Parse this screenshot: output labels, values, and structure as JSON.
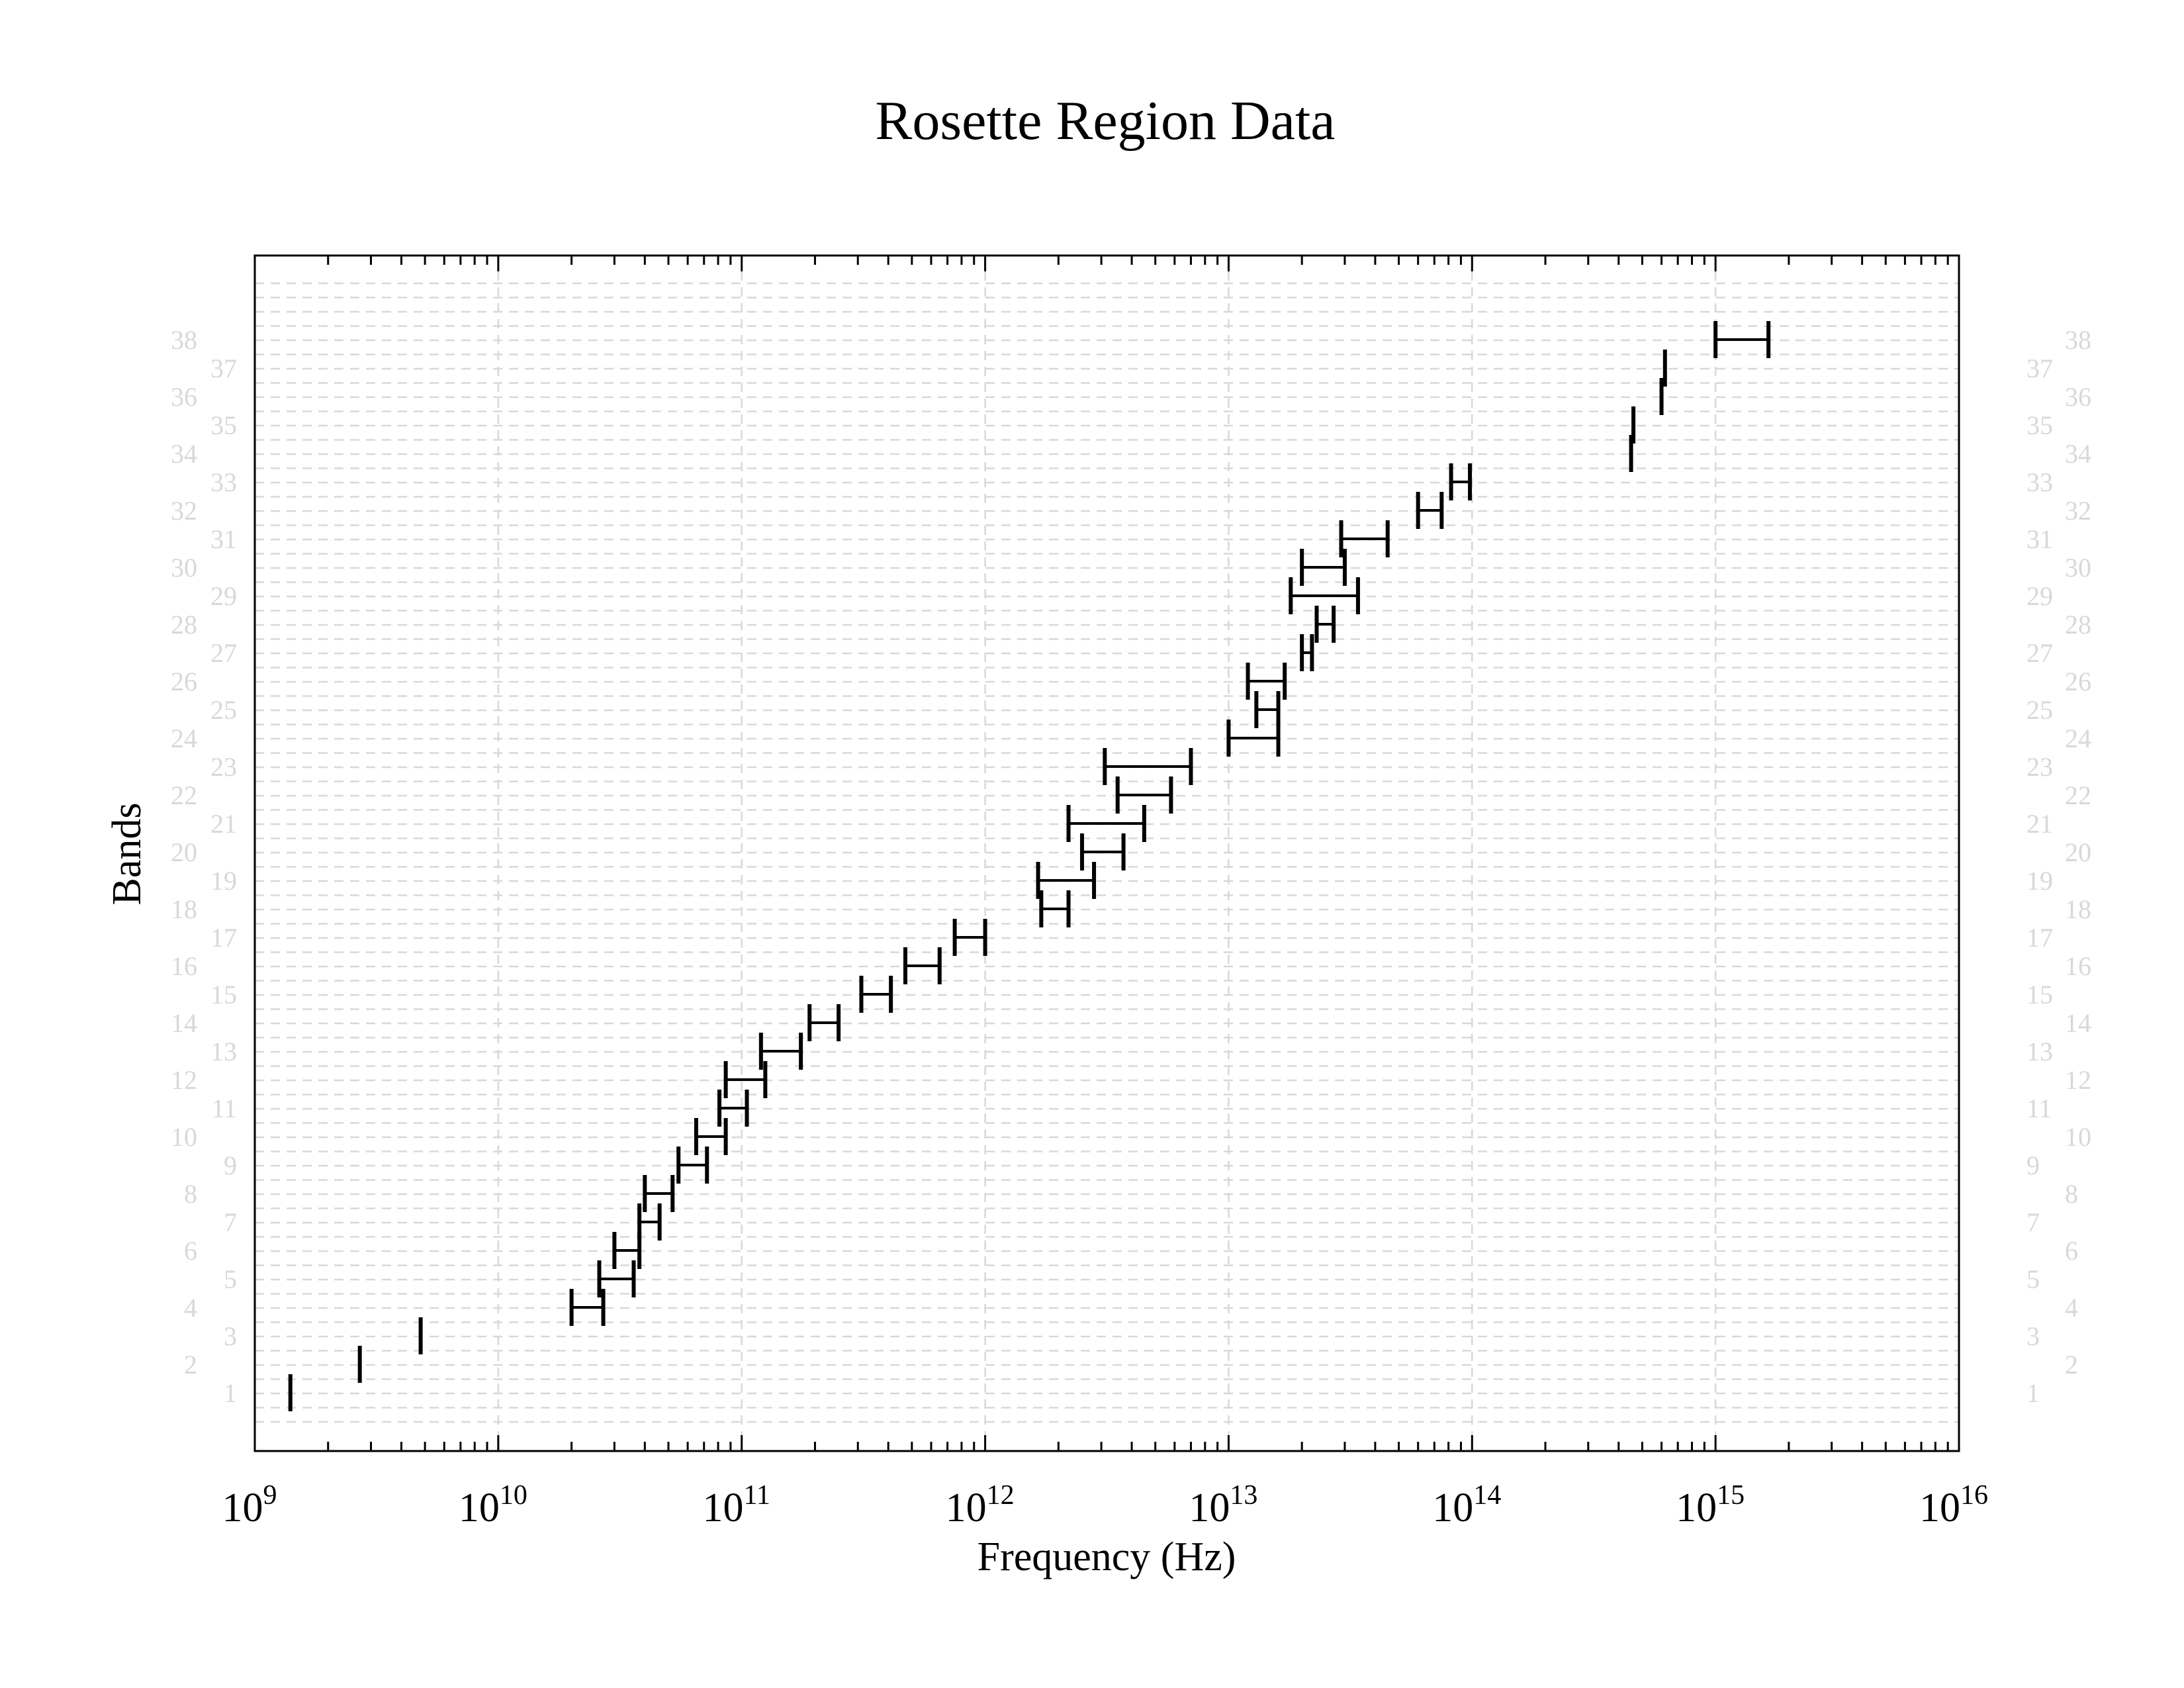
{
  "chart_data": {
    "type": "range",
    "title": "Rosette Region Data",
    "xlabel": "Frequency (Hz)",
    "ylabel": "Bands",
    "x_scale": "log",
    "xlim": [
      1000000000.0,
      1e+16
    ],
    "x_ticks": [
      {
        "base": "10",
        "exp": "9",
        "value": 1000000000.0
      },
      {
        "base": "10",
        "exp": "10",
        "value": 10000000000.0
      },
      {
        "base": "10",
        "exp": "11",
        "value": 100000000000.0
      },
      {
        "base": "10",
        "exp": "12",
        "value": 1000000000000.0
      },
      {
        "base": "10",
        "exp": "13",
        "value": 10000000000000.0
      },
      {
        "base": "10",
        "exp": "14",
        "value": 100000000000000.0
      },
      {
        "base": "10",
        "exp": "15",
        "value": 1000000000000000.0
      },
      {
        "base": "10",
        "exp": "16",
        "value": 1e+16
      }
    ],
    "grid": true,
    "y_tick_labels_left": [
      "1",
      "2",
      "3",
      "4",
      "5",
      "6",
      "7",
      "8",
      "9",
      "10",
      "11",
      "12",
      "13",
      "14",
      "15",
      "16",
      "17",
      "18",
      "19",
      "20",
      "21",
      "22",
      "23",
      "24",
      "25",
      "26",
      "27",
      "28",
      "29",
      "30",
      "31",
      "32",
      "33",
      "34",
      "35",
      "36",
      "37",
      "38"
    ],
    "y_tick_labels_right": [
      "1",
      "2",
      "3",
      "4",
      "5",
      "6",
      "7",
      "8",
      "9",
      "10",
      "11",
      "12",
      "13",
      "14",
      "15",
      "16",
      "17",
      "18",
      "19",
      "20",
      "21",
      "22",
      "23",
      "24",
      "25",
      "26",
      "27",
      "28",
      "29",
      "30",
      "31",
      "32",
      "33",
      "34",
      "35",
      "36",
      "37",
      "38"
    ],
    "bands": [
      {
        "band": 1,
        "low": 1400000000.0,
        "high": 1400000000.0
      },
      {
        "band": 2,
        "low": 2700000000.0,
        "high": 2700000000.0
      },
      {
        "band": 3,
        "low": 4800000000.0,
        "high": 4800000000.0
      },
      {
        "band": 4,
        "low": 20000000000.0,
        "high": 27000000000.0
      },
      {
        "band": 5,
        "low": 26000000000.0,
        "high": 36000000000.0
      },
      {
        "band": 6,
        "low": 30000000000.0,
        "high": 38000000000.0
      },
      {
        "band": 7,
        "low": 38000000000.0,
        "high": 46000000000.0
      },
      {
        "band": 8,
        "low": 40000000000.0,
        "high": 52000000000.0
      },
      {
        "band": 9,
        "low": 55000000000.0,
        "high": 72000000000.0
      },
      {
        "band": 10,
        "low": 65000000000.0,
        "high": 86000000000.0
      },
      {
        "band": 11,
        "low": 81000000000.0,
        "high": 105000000000.0
      },
      {
        "band": 12,
        "low": 86000000000.0,
        "high": 125000000000.0
      },
      {
        "band": 13,
        "low": 120000000000.0,
        "high": 175000000000.0
      },
      {
        "band": 14,
        "low": 190000000000.0,
        "high": 250000000000.0
      },
      {
        "band": 15,
        "low": 310000000000.0,
        "high": 410000000000.0
      },
      {
        "band": 16,
        "low": 470000000000.0,
        "high": 650000000000.0
      },
      {
        "band": 17,
        "low": 750000000000.0,
        "high": 1000000000000.0
      },
      {
        "band": 18,
        "low": 1700000000000.0,
        "high": 2200000000000.0
      },
      {
        "band": 19,
        "low": 1650000000000.0,
        "high": 2800000000000.0
      },
      {
        "band": 20,
        "low": 2500000000000.0,
        "high": 3700000000000.0
      },
      {
        "band": 21,
        "low": 2200000000000.0,
        "high": 4500000000000.0
      },
      {
        "band": 22,
        "low": 3500000000000.0,
        "high": 5800000000000.0
      },
      {
        "band": 23,
        "low": 3100000000000.0,
        "high": 7000000000000.0
      },
      {
        "band": 24,
        "low": 10000000000000.0,
        "high": 16000000000000.0
      },
      {
        "band": 25,
        "low": 13000000000000.0,
        "high": 16000000000000.0
      },
      {
        "band": 26,
        "low": 12000000000000.0,
        "high": 17000000000000.0
      },
      {
        "band": 27,
        "low": 20000000000000.0,
        "high": 22000000000000.0
      },
      {
        "band": 28,
        "low": 23000000000000.0,
        "high": 27000000000000.0
      },
      {
        "band": 29,
        "low": 18000000000000.0,
        "high": 34000000000000.0
      },
      {
        "band": 30,
        "low": 20000000000000.0,
        "high": 30000000000000.0
      },
      {
        "band": 31,
        "low": 29000000000000.0,
        "high": 45000000000000.0
      },
      {
        "band": 32,
        "low": 60000000000000.0,
        "high": 75000000000000.0
      },
      {
        "band": 33,
        "low": 82000000000000.0,
        "high": 98000000000000.0
      },
      {
        "band": 34,
        "low": 450000000000000.0,
        "high": 450000000000000.0
      },
      {
        "band": 35,
        "low": 460000000000000.0,
        "high": 460000000000000.0
      },
      {
        "band": 36,
        "low": 600000000000000.0,
        "high": 600000000000000.0
      },
      {
        "band": 37,
        "low": 620000000000000.0,
        "high": 620000000000000.0
      },
      {
        "band": 38,
        "low": 1000000000000000.0,
        "high": 1650000000000000.0
      }
    ]
  },
  "colors": {
    "bars": "#000000",
    "grid": "#d8d8d8",
    "y_tick_labels": "#d8d8d8"
  }
}
